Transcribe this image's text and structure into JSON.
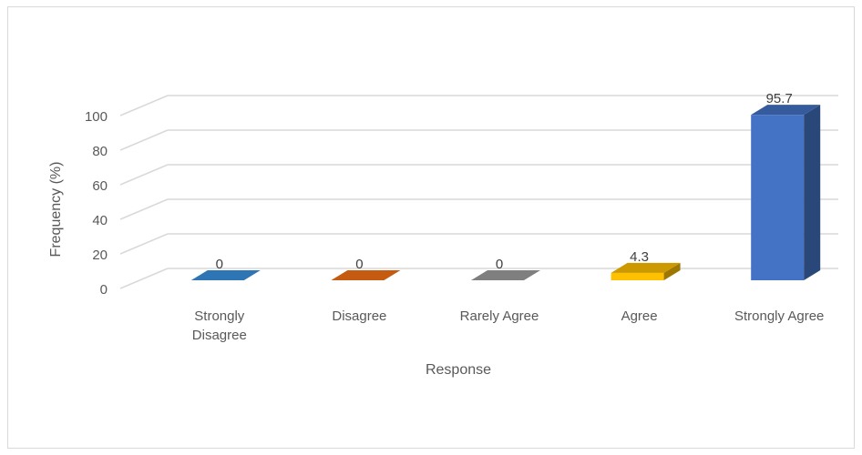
{
  "chart_data": {
    "type": "bar",
    "title": "",
    "xlabel": "Response",
    "ylabel": "Frequency (%)",
    "ylim": [
      0,
      100
    ],
    "yticks": [
      0,
      20,
      40,
      60,
      80,
      100
    ],
    "categories": [
      [
        "Strongly",
        "Disagree"
      ],
      [
        "Disagree"
      ],
      [
        "Rarely Agree"
      ],
      [
        "Agree"
      ],
      [
        "Strongly Agree"
      ]
    ],
    "values": [
      0,
      0,
      0,
      4.3,
      95.7
    ],
    "data_labels": [
      "0",
      "0",
      "0",
      "4.3",
      "95.7"
    ],
    "colors": [
      "#2e75b6",
      "#c55a11",
      "#7f7f7f",
      "#ffc000",
      "#4472c4"
    ],
    "grid": true,
    "style": "3d-column"
  }
}
